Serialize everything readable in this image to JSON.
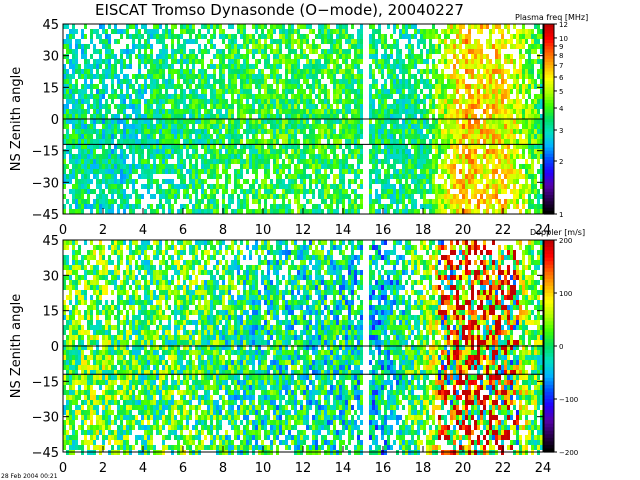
{
  "header": {
    "title": "EISCAT Tromso Dynasonde (O−mode),  20040227"
  },
  "footer": {
    "stamp": "28 Feb 2004 00:21"
  },
  "colors": {
    "reference_line": "#000000",
    "gap": "#ffffff",
    "colorbar": [
      "#000000",
      "#2a0050",
      "#5500aa",
      "#2200ff",
      "#0050ff",
      "#00b4ff",
      "#00e0c0",
      "#00e060",
      "#40ff00",
      "#b0ff00",
      "#ffff00",
      "#ffb000",
      "#ff6000",
      "#ff0000",
      "#c00000"
    ]
  },
  "chart_data": [
    {
      "type": "heatmap",
      "title": "EISCAT Tromso Dynasonde (O−mode),  20040227",
      "xlabel": "",
      "ylabel": "NS Zenith angle",
      "x_ticks": [
        "0",
        "2",
        "4",
        "6",
        "8",
        "10",
        "12",
        "14",
        "16",
        "18",
        "20",
        "22",
        "24"
      ],
      "y_ticks": [
        "45",
        "30",
        "15",
        "0",
        "−15",
        "−30",
        "−45"
      ],
      "xlim": [
        0,
        24
      ],
      "ylim": [
        -45,
        45
      ],
      "reference_lines_y": [
        0,
        -12
      ],
      "data_gap_x": [
        15.0,
        15.2
      ],
      "colorbar": {
        "label": "Plasma freq [MHz]",
        "scale": "log",
        "min": 1,
        "max": 12,
        "ticks": [
          "12",
          "10",
          "9",
          "8",
          "7",
          "6",
          "5",
          "4",
          "3",
          "2",
          "1"
        ]
      },
      "color_by_hour": [
        {
          "hour": 0,
          "value": 3.2
        },
        {
          "hour": 2,
          "value": 3.0
        },
        {
          "hour": 4,
          "value": 3.2
        },
        {
          "hour": 6,
          "value": 3.4
        },
        {
          "hour": 8,
          "value": 3.6
        },
        {
          "hour": 10,
          "value": 3.7
        },
        {
          "hour": 12,
          "value": 3.8
        },
        {
          "hour": 14,
          "value": 3.7
        },
        {
          "hour": 16,
          "value": 3.3
        },
        {
          "hour": 18,
          "value": 3.4
        },
        {
          "hour": 20,
          "value": 6.5
        },
        {
          "hour": 22,
          "value": 6.0
        },
        {
          "hour": 24,
          "value": 3.4
        }
      ]
    },
    {
      "type": "heatmap",
      "title": "",
      "xlabel": "",
      "ylabel": "NS Zenith angle",
      "x_ticks": [
        "0",
        "2",
        "4",
        "6",
        "8",
        "10",
        "12",
        "14",
        "16",
        "18",
        "20",
        "22",
        "24"
      ],
      "y_ticks": [
        "45",
        "30",
        "15",
        "0",
        "−15",
        "−30",
        "−45"
      ],
      "xlim": [
        0,
        24
      ],
      "ylim": [
        -45,
        45
      ],
      "reference_lines_y": [
        0,
        -12
      ],
      "data_gap_x": [
        15.0,
        15.2
      ],
      "colorbar": {
        "label": "Doppler [m/s]",
        "scale": "linear",
        "min": -200,
        "max": 200,
        "ticks": [
          "200",
          "100",
          "0",
          "−100",
          "−200"
        ]
      },
      "color_by_hour": [
        {
          "hour": 0,
          "value": 20
        },
        {
          "hour": 2,
          "value": 30
        },
        {
          "hour": 4,
          "value": 10
        },
        {
          "hour": 6,
          "value": 20
        },
        {
          "hour": 8,
          "value": 0
        },
        {
          "hour": 10,
          "value": -10
        },
        {
          "hour": 12,
          "value": -10
        },
        {
          "hour": 14,
          "value": -15
        },
        {
          "hour": 16,
          "value": -40
        },
        {
          "hour": 18,
          "value": 30
        },
        {
          "hour": 20,
          "value": 120
        },
        {
          "hour": 22,
          "value": 90
        },
        {
          "hour": 24,
          "value": 10
        }
      ]
    }
  ]
}
